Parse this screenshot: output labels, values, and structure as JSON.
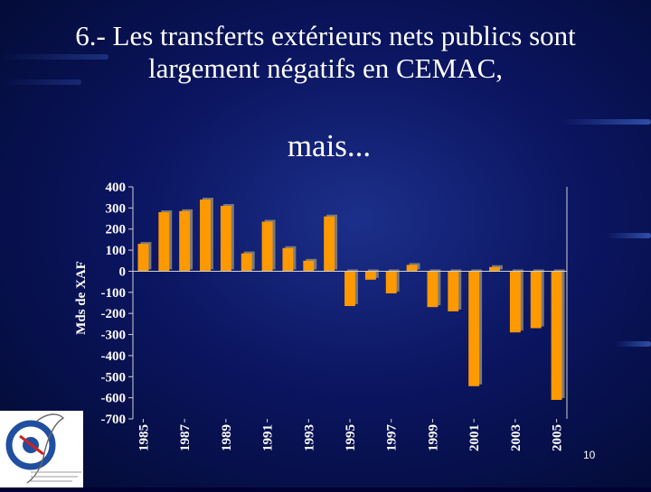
{
  "slide": {
    "title_line1": "6.- Les transferts extérieurs nets publics sont",
    "title_line2": "largement négatifs en CEMAC,",
    "subtitle": "mais...",
    "page_number": "10"
  },
  "colors": {
    "background": "#0b1560",
    "bar_fill": "#ff9900",
    "bar_shadow": "#7a7a7a",
    "text": "#ffffff"
  },
  "chart_data": {
    "type": "bar",
    "title": "",
    "xlabel": "",
    "ylabel": "Mds de XAF",
    "ylim": [
      -700,
      400
    ],
    "yticks": [
      400,
      300,
      200,
      100,
      0,
      -100,
      -200,
      -300,
      -400,
      -500,
      -600,
      -700
    ],
    "xtick_labels": [
      "1985",
      "1987",
      "1989",
      "1991",
      "1993",
      "1995",
      "1997",
      "1999",
      "2001",
      "2003",
      "2005"
    ],
    "categories": [
      "1985",
      "1986",
      "1987",
      "1988",
      "1989",
      "1990",
      "1991",
      "1992",
      "1993",
      "1994",
      "1995",
      "1996",
      "1997",
      "1998",
      "1999",
      "2000",
      "2001",
      "2002",
      "2003",
      "2004",
      "2005"
    ],
    "values": [
      130,
      280,
      285,
      340,
      310,
      85,
      235,
      110,
      50,
      260,
      -165,
      -40,
      -105,
      30,
      -170,
      -190,
      -545,
      20,
      -290,
      -270,
      -610
    ],
    "grid": false,
    "legend": "none"
  }
}
